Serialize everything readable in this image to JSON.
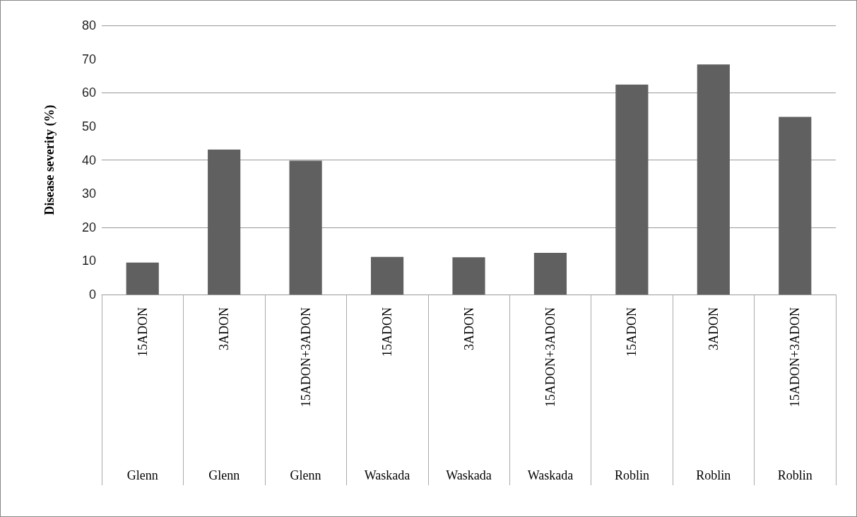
{
  "chart_data": {
    "type": "bar",
    "ylabel": "Disease severity (%)",
    "categories": [
      "15ADON",
      "3ADON",
      "15ADON+3ADON",
      "15ADON",
      "3ADON",
      "15ADON+3ADON",
      "15ADON",
      "3ADON",
      "15ADON+3ADON"
    ],
    "values": [
      9.5,
      43.1,
      39.8,
      11.2,
      11.1,
      12.4,
      62.4,
      68.4,
      52.8
    ],
    "color": "#606060",
    "annotations": [
      "Glenn",
      "Glenn",
      "Glenn",
      "Waskada",
      "Waskada",
      "Waskada",
      "Roblin",
      "Roblin",
      "Roblin"
    ],
    "ylim": [
      0,
      80
    ],
    "yticks": [
      0,
      10,
      20,
      30,
      40,
      50,
      60,
      70,
      80
    ],
    "grid": "y"
  }
}
